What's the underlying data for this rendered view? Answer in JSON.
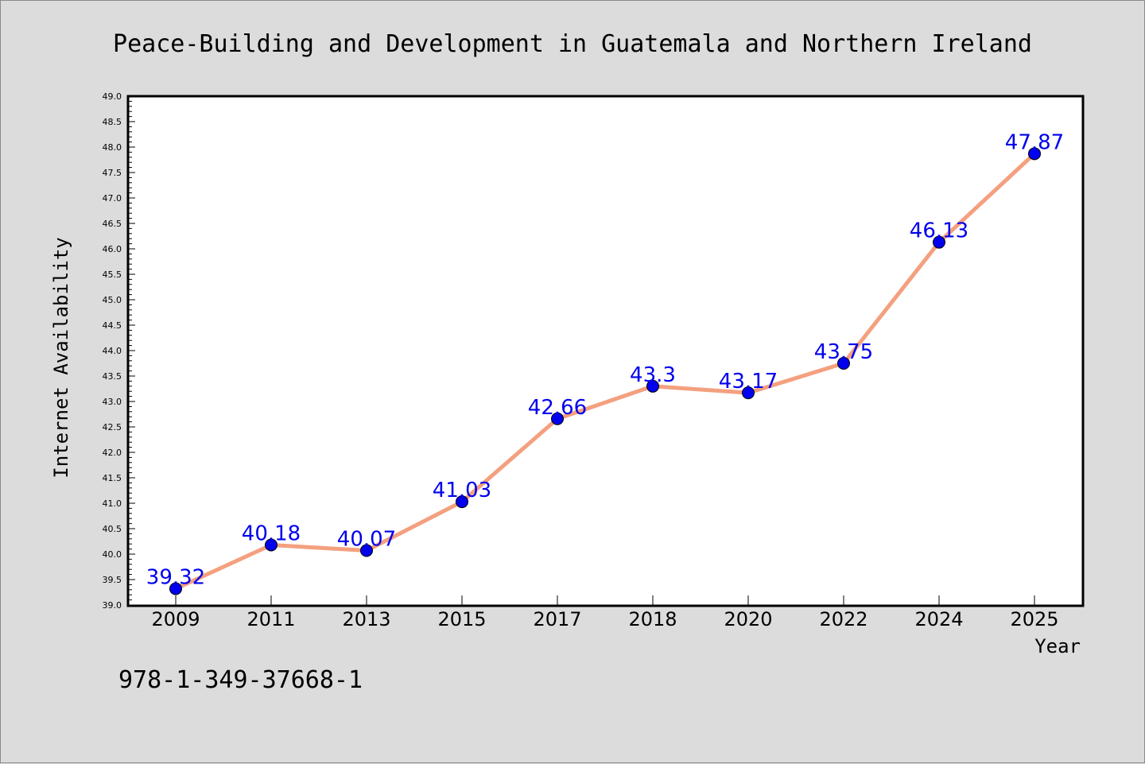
{
  "chart_data": {
    "type": "line",
    "title": "Peace-Building and Development in Guatemala and Northern Ireland",
    "xlabel": "Year",
    "ylabel": "Internet Availability",
    "categories": [
      "2009",
      "2011",
      "2013",
      "2015",
      "2017",
      "2018",
      "2020",
      "2022",
      "2024",
      "2025"
    ],
    "series": [
      {
        "values": [
          39.32,
          40.18,
          40.07,
          41.03,
          42.66,
          43.3,
          43.17,
          43.75,
          46.13,
          47.87
        ],
        "data_labels": [
          "39.32",
          "40.18",
          "40.07",
          "41.03",
          "42.66",
          "43.3",
          "43.17",
          "43.75",
          "46.13",
          "47.87"
        ]
      }
    ],
    "ylim": [
      39.0,
      49.0
    ],
    "yticks": [
      "39.0",
      "39.5",
      "40.0",
      "40.5",
      "41.0",
      "41.5",
      "42.0",
      "42.5",
      "43.0",
      "43.5",
      "44.0",
      "44.5",
      "45.0",
      "45.5",
      "46.0",
      "46.5",
      "47.0",
      "47.5",
      "48.0",
      "48.5",
      "49.0"
    ],
    "grid": false,
    "legend": "none",
    "colors": {
      "line": "#f4a07f",
      "marker": "#0000ee",
      "label": "#0000ee",
      "background": "#dcdcdc",
      "plot_background": "#ffffff"
    }
  },
  "footer": {
    "isbn": "978-1-349-37668-1"
  }
}
